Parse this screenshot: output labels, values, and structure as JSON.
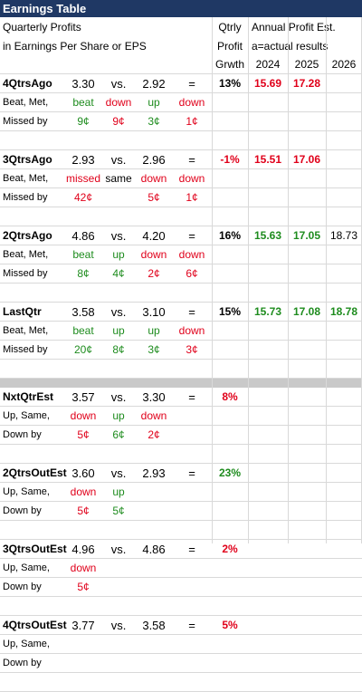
{
  "title": "Earnings Table",
  "header": {
    "line1": "Quarterly Profits",
    "line1_right": "Qtrly",
    "annual": "Annual Profit Est.",
    "line2": "in Earnings Per Share or EPS",
    "line2_right": "Profit",
    "actual": "a=actual results",
    "growth": "Grwth",
    "y2024": "2024",
    "y2025": "2025",
    "y2026": "2026"
  },
  "sections": [
    {
      "label": "4QtrsAgo",
      "a": "3.30",
      "vs": "vs.",
      "b": "2.92",
      "eq": "=",
      "growth": "13%",
      "y2024": "15.69",
      "y2025": "17.28",
      "y2026": "",
      "r2label": "Beat, Met,",
      "r2": [
        "beat",
        "down",
        "up",
        "down"
      ],
      "r3label": "Missed by",
      "r3": [
        "9¢",
        "9¢",
        "3¢",
        "1¢"
      ]
    },
    {
      "label": "3QtrsAgo",
      "a": "2.93",
      "vs": "vs.",
      "b": "2.96",
      "eq": "=",
      "growth": "-1%",
      "y2024": "15.51",
      "y2025": "17.06",
      "y2026": "",
      "r2label": "Beat, Met,",
      "r2": [
        "missed",
        "same",
        "down",
        "down"
      ],
      "r3label": "Missed by",
      "r3": [
        "42¢",
        "",
        "5¢",
        "1¢"
      ]
    },
    {
      "label": "2QtrsAgo",
      "a": "4.86",
      "vs": "vs.",
      "b": "4.20",
      "eq": "=",
      "growth": "16%",
      "y2024": "15.63",
      "y2025": "17.05",
      "y2026": "18.73",
      "r2label": "Beat, Met,",
      "r2": [
        "beat",
        "up",
        "down",
        "down"
      ],
      "r3label": "Missed by",
      "r3": [
        "8¢",
        "4¢",
        "2¢",
        "6¢"
      ]
    },
    {
      "label": "LastQtr",
      "a": "3.58",
      "vs": "vs.",
      "b": "3.10",
      "eq": "=",
      "growth": "15%",
      "y2024": "15.73",
      "y2025": "17.08",
      "y2026": "18.78",
      "r2label": "Beat, Met,",
      "r2": [
        "beat",
        "up",
        "up",
        "down"
      ],
      "r3label": "Missed by",
      "r3": [
        "20¢",
        "8¢",
        "3¢",
        "3¢"
      ]
    },
    {
      "label": "NxtQtrEst",
      "a": "3.57",
      "vs": "vs.",
      "b": "3.30",
      "eq": "=",
      "growth": "8%",
      "r2label": "Up, Same,",
      "r2": [
        "down",
        "up",
        "down",
        ""
      ],
      "r3label": "Down by",
      "r3": [
        "5¢",
        "6¢",
        "2¢",
        ""
      ]
    },
    {
      "label": "2QtrsOutEst",
      "a": "3.60",
      "vs": "vs.",
      "b": "2.93",
      "eq": "=",
      "growth": "23%",
      "r2label": "Up, Same,",
      "r2": [
        "down",
        "up",
        "",
        ""
      ],
      "r3label": "Down by",
      "r3": [
        "5¢",
        "5¢",
        "",
        ""
      ]
    },
    {
      "label": "3QtrsOutEst",
      "a": "4.96",
      "vs": "vs.",
      "b": "4.86",
      "eq": "=",
      "growth": "2%",
      "r2label": "Up, Same,",
      "r2": [
        "down",
        "",
        "",
        ""
      ],
      "r3label": "Down by",
      "r3": [
        "5¢",
        "",
        "",
        ""
      ]
    },
    {
      "label": "4QtrsOutEst",
      "a": "3.77",
      "vs": "vs.",
      "b": "3.58",
      "eq": "=",
      "growth": "5%",
      "r2label": "Up, Same,",
      "r2": [
        "",
        "",
        "",
        ""
      ],
      "r3label": "Down by",
      "r3": [
        "",
        "",
        "",
        ""
      ]
    }
  ],
  "colors": {
    "title_bg": "#1f3864",
    "red": "#e0001a",
    "green": "#1e8c1e",
    "separator": "#c9c9c9"
  }
}
